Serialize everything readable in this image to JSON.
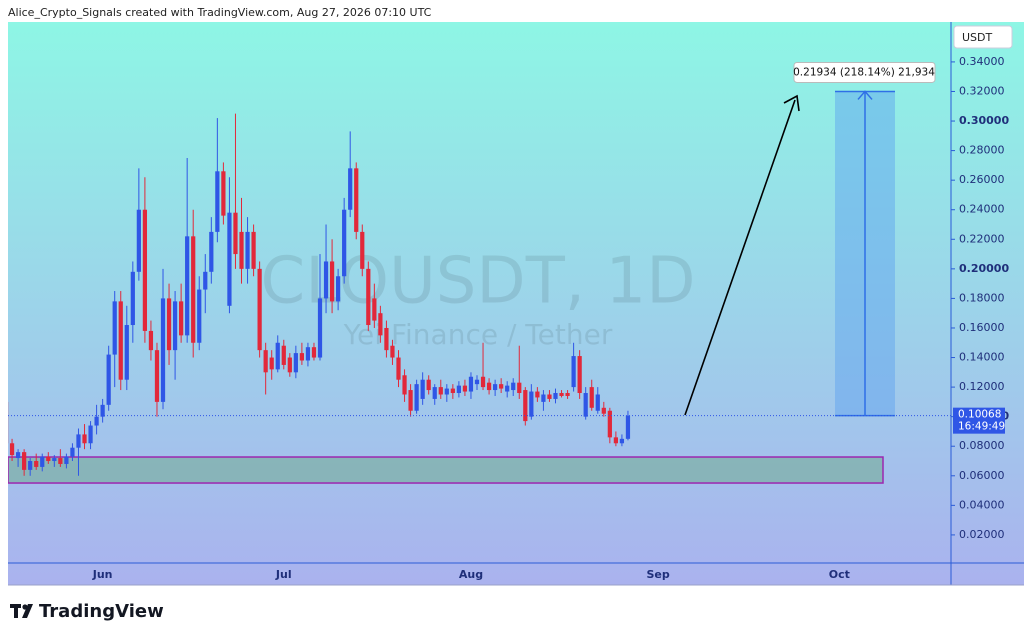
{
  "header": "Alice_Crypto_Signals created with TradingView.com, Aug 27, 2026 07:10 UTC",
  "brand": "TradingView",
  "chart_data": {
    "type": "candlestick",
    "watermark": "CLOUSDT, 1D",
    "watermark_subtitle": "Yei Finance / Tether",
    "currency": "USDT",
    "up_color": "#2f56e6",
    "down_color": "#e2283a",
    "countdown": "16:49:49",
    "categories": [
      null,
      null,
      null,
      null,
      null,
      null,
      null,
      null,
      null,
      null,
      null,
      null,
      null,
      null,
      null,
      null,
      "Jun",
      null,
      null,
      null,
      null,
      null,
      null,
      null,
      null,
      null,
      null,
      null,
      null,
      null,
      null,
      null,
      null,
      null,
      null,
      null,
      null,
      null,
      null,
      null,
      null,
      null,
      null,
      null,
      null,
      null,
      "Jul",
      null,
      null,
      null,
      null,
      null,
      null,
      null,
      null,
      null,
      null,
      null,
      null,
      null,
      null,
      null,
      null,
      null,
      null,
      null,
      null,
      null,
      null,
      null,
      null,
      null,
      null,
      null,
      null,
      null,
      null,
      "Aug",
      null,
      null,
      null,
      null,
      null,
      null,
      null,
      null,
      null,
      null,
      null,
      null,
      null,
      null,
      null,
      null,
      null,
      null,
      null,
      null,
      null,
      null,
      null,
      null,
      null,
      null,
      null,
      null,
      null,
      null,
      "Sep",
      null,
      null,
      null,
      null,
      null,
      null,
      null,
      null,
      null,
      null,
      null,
      null,
      null,
      null,
      null,
      null,
      null,
      null,
      null,
      null,
      null,
      null,
      null,
      null,
      null,
      null,
      null,
      null,
      null,
      "Oct",
      null,
      null,
      null,
      null,
      null,
      null,
      null,
      null,
      null,
      null,
      null,
      null,
      null,
      null,
      null,
      null,
      null,
      null
    ],
    "open": [
      0.11,
      0.082,
      0.072,
      0.076,
      0.064,
      0.07,
      0.066,
      0.073,
      0.07,
      0.072,
      0.068,
      0.073,
      0.079,
      0.088,
      0.082,
      0.094,
      0.1,
      0.108,
      0.142,
      0.178,
      0.125,
      0.162,
      0.198,
      0.24,
      0.158,
      0.145,
      0.11,
      0.18,
      0.145,
      0.178,
      0.155,
      0.222,
      0.15,
      0.186,
      0.198,
      0.225,
      0.266,
      0.175,
      0.238,
      0.225,
      0.2,
      0.225,
      0.2,
      0.145,
      0.14,
      0.132,
      0.148,
      0.14,
      0.13,
      0.143,
      0.138,
      0.147,
      0.14,
      0.18,
      0.205,
      0.178,
      0.195,
      0.24,
      0.268,
      0.225,
      0.2,
      0.18,
      0.17,
      0.16,
      0.148,
      0.14,
      0.128,
      0.118,
      0.104,
      0.112,
      0.125,
      0.112,
      0.12,
      0.115,
      0.119,
      0.116,
      0.121,
      0.117,
      0.122,
      0.127,
      0.123,
      0.118,
      0.122,
      0.117,
      0.118,
      0.123,
      0.118,
      0.1,
      0.117,
      0.11,
      0.115,
      0.112,
      0.116,
      0.116,
      0.12,
      0.141,
      0.1,
      0.12,
      0.104,
      0.106,
      0.104,
      0.086,
      0.082,
      0.085,
      null,
      null,
      null,
      null,
      null,
      null,
      null,
      null,
      null,
      null,
      null,
      null,
      null,
      null,
      null,
      null,
      null,
      null,
      null,
      null,
      null,
      null,
      null,
      null,
      null,
      null,
      null,
      null,
      null,
      null,
      null,
      null,
      null,
      null,
      null,
      null,
      null,
      null,
      null,
      null,
      null,
      null,
      null,
      null,
      null,
      null,
      null,
      null,
      null,
      null,
      null,
      null,
      null
    ],
    "high": [
      0.115,
      0.085,
      0.078,
      0.078,
      0.072,
      0.075,
      0.075,
      0.076,
      0.074,
      0.078,
      0.075,
      0.082,
      0.092,
      0.095,
      0.097,
      0.108,
      0.112,
      0.148,
      0.185,
      0.185,
      0.175,
      0.205,
      0.268,
      0.262,
      0.165,
      0.15,
      0.2,
      0.19,
      0.185,
      0.19,
      0.275,
      0.24,
      0.195,
      0.21,
      0.235,
      0.302,
      0.272,
      0.262,
      0.305,
      0.248,
      0.235,
      0.23,
      0.205,
      0.15,
      0.145,
      0.155,
      0.152,
      0.143,
      0.148,
      0.15,
      0.15,
      0.15,
      0.21,
      0.23,
      0.22,
      0.2,
      0.248,
      0.293,
      0.272,
      0.23,
      0.205,
      0.19,
      0.175,
      0.165,
      0.152,
      0.145,
      0.132,
      0.122,
      0.125,
      0.13,
      0.128,
      0.122,
      0.125,
      0.122,
      0.122,
      0.124,
      0.125,
      0.13,
      0.128,
      0.15,
      0.126,
      0.125,
      0.126,
      0.124,
      0.126,
      0.148,
      0.12,
      0.122,
      0.12,
      0.118,
      0.118,
      0.119,
      0.118,
      0.118,
      0.15,
      0.145,
      0.12,
      0.125,
      0.12,
      0.11,
      0.106,
      0.09,
      0.088,
      0.104,
      null,
      null,
      null,
      null,
      null,
      null,
      null,
      null,
      null,
      null,
      null,
      null,
      null,
      null,
      null,
      null,
      null,
      null,
      null,
      null,
      null,
      null,
      null,
      null,
      null,
      null,
      null,
      null,
      null,
      null,
      null,
      null,
      null,
      null,
      null,
      null,
      null,
      null,
      null,
      null,
      null,
      null,
      null,
      null,
      null,
      null,
      null,
      null,
      null,
      null,
      null,
      null,
      null
    ],
    "low": [
      0.078,
      0.07,
      0.066,
      0.06,
      0.06,
      0.064,
      0.063,
      0.068,
      0.066,
      0.066,
      0.065,
      0.07,
      0.06,
      0.078,
      0.078,
      0.088,
      0.096,
      0.104,
      0.12,
      0.118,
      0.118,
      0.15,
      0.192,
      0.15,
      0.138,
      0.1,
      0.105,
      0.135,
      0.125,
      0.15,
      0.15,
      0.14,
      0.145,
      0.17,
      0.19,
      0.218,
      0.23,
      0.17,
      0.2,
      0.19,
      0.19,
      0.195,
      0.14,
      0.115,
      0.125,
      0.13,
      0.132,
      0.127,
      0.126,
      0.135,
      0.134,
      0.138,
      0.138,
      0.17,
      0.17,
      0.172,
      0.19,
      0.235,
      0.22,
      0.195,
      0.158,
      0.16,
      0.15,
      0.14,
      0.135,
      0.12,
      0.11,
      0.1,
      0.102,
      0.108,
      0.115,
      0.108,
      0.112,
      0.11,
      0.112,
      0.113,
      0.114,
      0.112,
      0.118,
      0.118,
      0.115,
      0.114,
      0.116,
      0.113,
      0.114,
      0.112,
      0.094,
      0.098,
      0.11,
      0.104,
      0.11,
      0.109,
      0.113,
      0.112,
      0.117,
      0.112,
      0.098,
      0.104,
      0.102,
      0.1,
      0.082,
      0.08,
      0.08,
      0.084,
      null,
      null,
      null,
      null,
      null,
      null,
      null,
      null,
      null,
      null,
      null,
      null,
      null,
      null,
      null,
      null,
      null,
      null,
      null,
      null,
      null,
      null,
      null,
      null,
      null,
      null,
      null,
      null,
      null,
      null,
      null,
      null,
      null,
      null,
      null,
      null,
      null,
      null,
      null,
      null,
      null,
      null,
      null,
      null,
      null,
      null,
      null,
      null,
      null,
      null,
      null,
      null,
      null
    ],
    "close": [
      0.082,
      0.074,
      0.076,
      0.064,
      0.07,
      0.066,
      0.073,
      0.07,
      0.072,
      0.068,
      0.073,
      0.079,
      0.088,
      0.082,
      0.094,
      0.1,
      0.108,
      0.142,
      0.178,
      0.125,
      0.162,
      0.198,
      0.24,
      0.158,
      0.145,
      0.11,
      0.18,
      0.145,
      0.178,
      0.155,
      0.222,
      0.15,
      0.186,
      0.198,
      0.225,
      0.266,
      0.236,
      0.238,
      0.21,
      0.2,
      0.225,
      0.2,
      0.145,
      0.13,
      0.132,
      0.15,
      0.135,
      0.13,
      0.143,
      0.138,
      0.147,
      0.14,
      0.18,
      0.205,
      0.178,
      0.195,
      0.24,
      0.268,
      0.225,
      0.2,
      0.162,
      0.165,
      0.155,
      0.145,
      0.14,
      0.125,
      0.115,
      0.104,
      0.122,
      0.125,
      0.118,
      0.12,
      0.115,
      0.119,
      0.116,
      0.121,
      0.117,
      0.127,
      0.125,
      0.12,
      0.118,
      0.122,
      0.119,
      0.121,
      0.123,
      0.116,
      0.097,
      0.117,
      0.113,
      0.115,
      0.112,
      0.116,
      0.114,
      0.114,
      0.141,
      0.116,
      0.116,
      0.106,
      0.115,
      0.102,
      0.086,
      0.082,
      0.085,
      0.10068,
      null,
      null,
      null,
      null,
      null,
      null,
      null,
      null,
      null,
      null,
      null,
      null,
      null,
      null,
      null,
      null,
      null,
      null,
      null,
      null,
      null,
      null,
      null,
      null,
      null,
      null,
      null,
      null,
      null,
      null,
      null,
      null,
      null,
      null,
      null,
      null,
      null,
      null,
      null,
      null,
      null,
      null,
      null,
      null,
      null,
      null,
      null,
      null,
      null,
      null,
      null,
      null,
      null
    ],
    "support_zone": {
      "from": 0.0551,
      "to": 0.0727
    },
    "measure": {
      "from": 0.10068,
      "to": 0.32002,
      "label": "0.21934 (218.14%) 21,934"
    },
    "ylim": [
      0.001,
      0.367
    ],
    "yticks": [
      {
        "value": 0.02,
        "label": "0.02000"
      },
      {
        "value": 0.04,
        "label": "0.04000"
      },
      {
        "value": 0.06,
        "label": "0.06000"
      },
      {
        "value": 0.08,
        "label": "0.08000"
      },
      {
        "value": 0.1,
        "label": "0.10000"
      },
      {
        "value": 0.12,
        "label": "0.12000"
      },
      {
        "value": 0.14,
        "label": "0.14000"
      },
      {
        "value": 0.16,
        "label": "0.16000"
      },
      {
        "value": 0.18,
        "label": "0.18000"
      },
      {
        "value": 0.2,
        "label": "0.20000"
      },
      {
        "value": 0.22,
        "label": "0.22000"
      },
      {
        "value": 0.24,
        "label": "0.24000"
      },
      {
        "value": 0.26,
        "label": "0.26000"
      },
      {
        "value": 0.28,
        "label": "0.28000"
      },
      {
        "value": 0.3,
        "label": "0.30000"
      },
      {
        "value": 0.32,
        "label": "0.32000"
      },
      {
        "value": 0.34,
        "label": "0.34000"
      }
    ],
    "grid": false
  }
}
